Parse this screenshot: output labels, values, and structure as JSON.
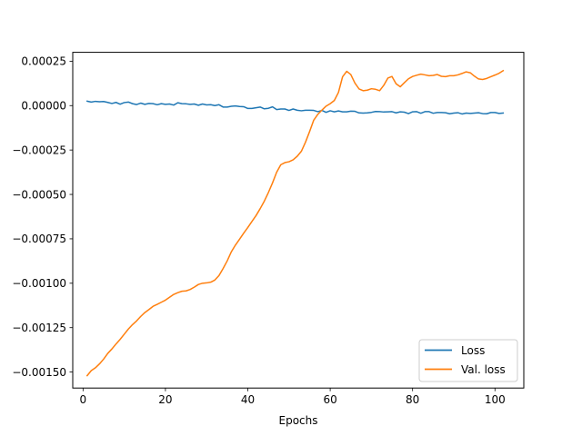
{
  "chart_data": {
    "type": "line",
    "title": "",
    "xlabel": "Epochs",
    "ylabel": "",
    "xlim": [
      -2.5,
      107
    ],
    "ylim": [
      -0.00159,
      0.0003
    ],
    "xticks": [
      0,
      20,
      40,
      60,
      80,
      100
    ],
    "xtick_labels": [
      "0",
      "20",
      "40",
      "60",
      "80",
      "100"
    ],
    "yticks": [
      0.00025,
      0.0,
      -0.00025,
      -0.0005,
      -0.00075,
      -0.001,
      -0.00125,
      -0.0015
    ],
    "ytick_labels": [
      "0.00025",
      "0.00000",
      "−0.00025",
      "−0.00050",
      "−0.00075",
      "−0.00100",
      "−0.00125",
      "−0.00150"
    ],
    "grid": false,
    "legend_position": "lower-right",
    "series": [
      {
        "name": "Loss",
        "color": "#1f77b4",
        "x": [
          1,
          2,
          3,
          4,
          5,
          6,
          7,
          8,
          9,
          10,
          11,
          12,
          13,
          14,
          15,
          16,
          17,
          18,
          19,
          20,
          21,
          22,
          23,
          24,
          25,
          26,
          27,
          28,
          29,
          30,
          31,
          32,
          33,
          34,
          35,
          36,
          37,
          38,
          39,
          40,
          41,
          42,
          43,
          44,
          45,
          46,
          47,
          48,
          49,
          50,
          51,
          52,
          53,
          54,
          55,
          56,
          57,
          58,
          59,
          60,
          61,
          62,
          63,
          64,
          65,
          66,
          67,
          68,
          69,
          70,
          71,
          72,
          73,
          74,
          75,
          76,
          77,
          78,
          79,
          80,
          81,
          82,
          83,
          84,
          85,
          86,
          87,
          88,
          89,
          90,
          91,
          92,
          93,
          94,
          95,
          96,
          97,
          98,
          99,
          100,
          101,
          102
        ],
        "y": [
          2.5e-05,
          2e-05,
          2.4e-05,
          2.2e-05,
          2.3e-05,
          1.8e-05,
          1.2e-05,
          1.8e-05,
          8e-06,
          1.7e-05,
          2e-05,
          1.1e-05,
          6e-06,
          1.4e-05,
          7e-06,
          1.2e-05,
          1.1e-05,
          5e-06,
          1.1e-05,
          7e-06,
          9e-06,
          3e-06,
          1.6e-05,
          1.1e-05,
          1e-05,
          7e-06,
          9e-06,
          2e-06,
          9e-06,
          4e-06,
          5e-06,
          0.0,
          5e-06,
          -8e-06,
          -8e-06,
          -4e-06,
          -2e-06,
          -5e-06,
          -6e-06,
          -1.6e-05,
          -1.6e-05,
          -1.2e-05,
          -8e-06,
          -1.8e-05,
          -1.5e-05,
          -7e-06,
          -2.2e-05,
          -1.9e-05,
          -1.9e-05,
          -2.7e-05,
          -1.9e-05,
          -2.6e-05,
          -2.9e-05,
          -2.6e-05,
          -2.6e-05,
          -2.7e-05,
          -3.4e-05,
          -2.7e-05,
          -3.8e-05,
          -2.9e-05,
          -3.5e-05,
          -3e-05,
          -3.5e-05,
          -3.5e-05,
          -3.1e-05,
          -3.2e-05,
          -4.1e-05,
          -4.2e-05,
          -4.1e-05,
          -3.8e-05,
          -3.3e-05,
          -3.4e-05,
          -3.6e-05,
          -3.5e-05,
          -3.4e-05,
          -4.1e-05,
          -3.5e-05,
          -3.7e-05,
          -4.5e-05,
          -3.5e-05,
          -3.4e-05,
          -4.3e-05,
          -3.4e-05,
          -3.4e-05,
          -4.3e-05,
          -3.9e-05,
          -3.9e-05,
          -4e-05,
          -4.6e-05,
          -4.2e-05,
          -4e-05,
          -4.7e-05,
          -4.2e-05,
          -4.4e-05,
          -4.2e-05,
          -4e-05,
          -4.5e-05,
          -4.6e-05,
          -3.9e-05,
          -3.9e-05,
          -4.4e-05,
          -4.2e-05
        ]
      },
      {
        "name": "Val. loss",
        "color": "#ff7f0e",
        "x": [
          1,
          2,
          3,
          4,
          5,
          6,
          7,
          8,
          9,
          10,
          11,
          12,
          13,
          14,
          15,
          16,
          17,
          18,
          19,
          20,
          21,
          22,
          23,
          24,
          25,
          26,
          27,
          28,
          29,
          30,
          31,
          32,
          33,
          34,
          35,
          36,
          37,
          38,
          39,
          40,
          41,
          42,
          43,
          44,
          45,
          46,
          47,
          48,
          49,
          50,
          51,
          52,
          53,
          54,
          55,
          56,
          57,
          58,
          59,
          60,
          61,
          62,
          63,
          64,
          65,
          66,
          67,
          68,
          69,
          70,
          71,
          72,
          73,
          74,
          75,
          76,
          77,
          78,
          79,
          80,
          81,
          82,
          83,
          84,
          85,
          86,
          87,
          88,
          89,
          90,
          91,
          92,
          93,
          94,
          95,
          96,
          97,
          98,
          99,
          100,
          101,
          102
        ],
        "y": [
          -0.00152,
          -0.001492,
          -0.001476,
          -0.001454,
          -0.001427,
          -0.001395,
          -0.00137,
          -0.001342,
          -0.001316,
          -0.001287,
          -0.001258,
          -0.001233,
          -0.001212,
          -0.001187,
          -0.001165,
          -0.001148,
          -0.00113,
          -0.001119,
          -0.001107,
          -0.001095,
          -0.001079,
          -0.001063,
          -0.001053,
          -0.001045,
          -0.001043,
          -0.001035,
          -0.001022,
          -0.001007,
          -0.001,
          -0.000998,
          -0.000994,
          -0.000982,
          -0.000957,
          -0.000917,
          -0.000874,
          -0.000823,
          -0.000785,
          -0.000752,
          -0.000718,
          -0.000686,
          -0.000652,
          -0.000619,
          -0.00058,
          -0.000538,
          -0.000489,
          -0.000435,
          -0.000375,
          -0.000333,
          -0.000321,
          -0.000316,
          -0.000305,
          -0.000285,
          -0.000257,
          -0.000206,
          -0.000146,
          -8.2e-05,
          -4.9e-05,
          -2.5e-05,
          -3e-06,
          1.1e-05,
          2.9e-05,
          7.4e-05,
          0.000162,
          0.000193,
          0.000175,
          0.000127,
          9.4e-05,
          8.4e-05,
          8.7e-05,
          9.5e-05,
          9.2e-05,
          8.4e-05,
          0.000114,
          0.000155,
          0.000164,
          0.000123,
          0.000106,
          0.000129,
          0.000151,
          0.000164,
          0.000171,
          0.000177,
          0.000173,
          0.000168,
          0.00017,
          0.000175,
          0.000165,
          0.000163,
          0.000168,
          0.000168,
          0.000173,
          0.000181,
          0.00019,
          0.000185,
          0.000166,
          0.00015,
          0.000147,
          0.000153,
          0.000163,
          0.000172,
          0.000182,
          0.000197
        ]
      }
    ]
  }
}
